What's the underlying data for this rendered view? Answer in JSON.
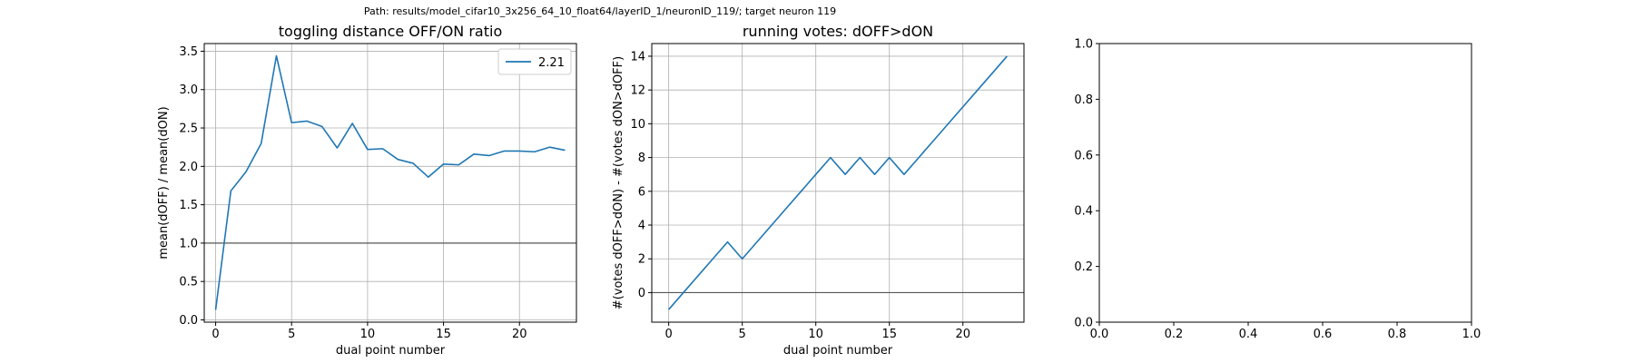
{
  "suptitle": "Path: results/model_cifar10_3x256_64_10_float64/layerID_1/neuronID_119/; target neuron 119",
  "colors": {
    "series": "#1f77b4",
    "grid": "#b0b0b0",
    "ref_line": "#555555",
    "axis": "#000000"
  },
  "chart_data": [
    {
      "type": "line",
      "title": "toggling distance OFF/ON ratio",
      "xlabel": "dual point number",
      "ylabel": "mean(dOFF) / mean(dON)",
      "xlim": [
        -0.75,
        23.75
      ],
      "ylim": [
        -0.03,
        3.6
      ],
      "xticks": [
        0,
        5,
        10,
        15,
        20
      ],
      "yticks": [
        0.0,
        0.5,
        1.0,
        1.5,
        2.0,
        2.5,
        3.0,
        3.5
      ],
      "ytick_labels": [
        "0.0",
        "0.5",
        "1.0",
        "1.5",
        "2.0",
        "2.5",
        "3.0",
        "3.5"
      ],
      "grid": true,
      "hline": 1.0,
      "legend": "top-right",
      "series": [
        {
          "name": "2.21",
          "x": [
            0,
            1,
            2,
            3,
            4,
            5,
            6,
            7,
            8,
            9,
            10,
            11,
            12,
            13,
            14,
            15,
            16,
            17,
            18,
            19,
            20,
            21,
            22,
            23
          ],
          "y": [
            0.13,
            1.68,
            1.93,
            2.3,
            3.44,
            2.57,
            2.59,
            2.52,
            2.24,
            2.56,
            2.22,
            2.23,
            2.09,
            2.04,
            1.86,
            2.03,
            2.02,
            2.16,
            2.14,
            2.2,
            2.2,
            2.19,
            2.25,
            2.21
          ]
        }
      ]
    },
    {
      "type": "line",
      "title": "running votes: dOFF>dON",
      "xlabel": "dual point number",
      "ylabel": "#(votes dOFF>dON) - #(votes dON>dOFF)",
      "xlim": [
        -1.15,
        24.15
      ],
      "ylim": [
        -1.75,
        14.75
      ],
      "xticks": [
        0,
        5,
        10,
        15,
        20
      ],
      "yticks": [
        0,
        2,
        4,
        6,
        8,
        10,
        12,
        14
      ],
      "ytick_labels": [
        "0",
        "2",
        "4",
        "6",
        "8",
        "10",
        "12",
        "14"
      ],
      "grid": true,
      "hline": 0,
      "series": [
        {
          "x": [
            0,
            1,
            2,
            3,
            4,
            5,
            6,
            7,
            8,
            9,
            10,
            11,
            12,
            13,
            14,
            15,
            16,
            17,
            18,
            19,
            20,
            21,
            22,
            23
          ],
          "y": [
            -1,
            0,
            1,
            2,
            3,
            2,
            3,
            4,
            5,
            6,
            7,
            8,
            7,
            8,
            7,
            8,
            7,
            8,
            9,
            10,
            11,
            12,
            13,
            14
          ]
        }
      ]
    },
    {
      "type": "line",
      "title": "",
      "xlabel": "",
      "ylabel": "",
      "xlim": [
        0,
        1
      ],
      "ylim": [
        0,
        1
      ],
      "xticks": [
        0.0,
        0.2,
        0.4,
        0.6,
        0.8,
        1.0
      ],
      "yticks": [
        0.0,
        0.2,
        0.4,
        0.6,
        0.8,
        1.0
      ],
      "ytick_labels": [
        "0.0",
        "0.2",
        "0.4",
        "0.6",
        "0.8",
        "1.0"
      ],
      "grid": false,
      "series": []
    }
  ]
}
